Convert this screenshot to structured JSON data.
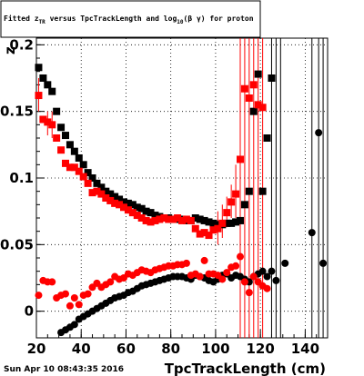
{
  "chart_data": {
    "type": "scatter",
    "title": "Fitted z_{TR} versus TpcTrackLength and log_{10}(βγ) for proton",
    "title_parts": {
      "pre": "Fitted z",
      "sub1": "TR",
      "mid": " versus TpcTrackLength and log",
      "sub2": "10",
      "post": "(β γ) for proton"
    },
    "xlabel": "TpcTrackLength (cm)",
    "ylabel": "z",
    "xlim": [
      20,
      150
    ],
    "ylim": [
      -0.02,
      0.205
    ],
    "x_ticks": [
      20,
      40,
      60,
      80,
      100,
      120,
      140
    ],
    "y_ticks": [
      0,
      0.05,
      0.1,
      0.15,
      0.2
    ],
    "y_tick_labels": [
      "0",
      "0.05",
      "0.1",
      "0.15",
      "0.2"
    ],
    "grid": true,
    "colors": {
      "mean_series": "#000000",
      "red_series": "#ff0000"
    },
    "series": [
      {
        "color": "#000000",
        "marker": "square",
        "points": [
          [
            21,
            0.183
          ],
          [
            23,
            0.175
          ],
          [
            25,
            0.17
          ],
          [
            27,
            0.165
          ],
          [
            29,
            0.15
          ],
          [
            31,
            0.138
          ],
          [
            33,
            0.132
          ],
          [
            35,
            0.125
          ],
          [
            37,
            0.12
          ],
          [
            39,
            0.115
          ],
          [
            41,
            0.11
          ],
          [
            43,
            0.104
          ],
          [
            45,
            0.1
          ],
          [
            47,
            0.096
          ],
          [
            49,
            0.093
          ],
          [
            51,
            0.09
          ],
          [
            53,
            0.088
          ],
          [
            55,
            0.086
          ],
          [
            57,
            0.084
          ],
          [
            59,
            0.082
          ],
          [
            61,
            0.081
          ],
          [
            63,
            0.08
          ],
          [
            65,
            0.078
          ],
          [
            67,
            0.077
          ],
          [
            69,
            0.075
          ],
          [
            71,
            0.074
          ],
          [
            73,
            0.072
          ],
          [
            75,
            0.071
          ],
          [
            77,
            0.07
          ],
          [
            79,
            0.07
          ],
          [
            81,
            0.069
          ],
          [
            83,
            0.069
          ],
          [
            85,
            0.069
          ],
          [
            87,
            0.068
          ],
          [
            89,
            0.068
          ],
          [
            91,
            0.07
          ],
          [
            93,
            0.069
          ],
          [
            95,
            0.068
          ],
          [
            97,
            0.067
          ],
          [
            99,
            0.066
          ],
          [
            101,
            0.065
          ],
          [
            103,
            0.065
          ],
          [
            105,
            0.066
          ],
          [
            107,
            0.066
          ],
          [
            109,
            0.067
          ],
          [
            111,
            0.068
          ],
          [
            113,
            0.08
          ],
          [
            115,
            0.09
          ],
          [
            117,
            0.15
          ],
          [
            119,
            0.178
          ],
          [
            121,
            0.09
          ],
          [
            123,
            0.13
          ],
          [
            125,
            0.175
          ]
        ]
      },
      {
        "color": "#ff0000",
        "marker": "square",
        "points": [
          [
            21,
            0.162
          ],
          [
            23,
            0.144
          ],
          [
            25,
            0.142
          ],
          [
            27,
            0.14
          ],
          [
            29,
            0.13
          ],
          [
            31,
            0.121
          ],
          [
            33,
            0.111
          ],
          [
            35,
            0.108
          ],
          [
            37,
            0.108
          ],
          [
            39,
            0.105
          ],
          [
            41,
            0.101
          ],
          [
            43,
            0.096
          ],
          [
            45,
            0.089
          ],
          [
            47,
            0.09
          ],
          [
            49,
            0.088
          ],
          [
            51,
            0.085
          ],
          [
            53,
            0.083
          ],
          [
            55,
            0.081
          ],
          [
            57,
            0.08
          ],
          [
            59,
            0.078
          ],
          [
            61,
            0.076
          ],
          [
            63,
            0.074
          ],
          [
            65,
            0.072
          ],
          [
            67,
            0.07
          ],
          [
            69,
            0.068
          ],
          [
            71,
            0.067
          ],
          [
            73,
            0.068
          ],
          [
            75,
            0.069
          ],
          [
            77,
            0.07
          ],
          [
            79,
            0.069
          ],
          [
            81,
            0.069
          ],
          [
            83,
            0.07
          ],
          [
            85,
            0.068
          ],
          [
            87,
            0.069
          ],
          [
            89,
            0.068
          ],
          [
            91,
            0.062
          ],
          [
            93,
            0.058
          ],
          [
            95,
            0.059
          ],
          [
            97,
            0.057
          ],
          [
            99,
            0.061
          ],
          [
            101,
            0.062
          ],
          [
            103,
            0.066
          ],
          [
            105,
            0.074
          ],
          [
            107,
            0.082
          ],
          [
            109,
            0.088
          ],
          [
            111,
            0.114
          ],
          [
            113,
            0.167
          ],
          [
            115,
            0.16
          ],
          [
            117,
            0.17
          ],
          [
            119,
            0.155
          ],
          [
            121,
            0.153
          ]
        ]
      },
      {
        "color": "#000000",
        "marker": "circle",
        "points": [
          [
            31,
            -0.016
          ],
          [
            33,
            -0.014
          ],
          [
            35,
            -0.012
          ],
          [
            37,
            -0.01
          ],
          [
            39,
            -0.006
          ],
          [
            41,
            -0.004
          ],
          [
            43,
            -0.002
          ],
          [
            45,
            0.0
          ],
          [
            47,
            0.002
          ],
          [
            49,
            0.004
          ],
          [
            51,
            0.006
          ],
          [
            53,
            0.008
          ],
          [
            55,
            0.01
          ],
          [
            57,
            0.011
          ],
          [
            59,
            0.012
          ],
          [
            61,
            0.014
          ],
          [
            63,
            0.015
          ],
          [
            65,
            0.017
          ],
          [
            67,
            0.019
          ],
          [
            69,
            0.02
          ],
          [
            71,
            0.021
          ],
          [
            73,
            0.022
          ],
          [
            75,
            0.023
          ],
          [
            77,
            0.024
          ],
          [
            79,
            0.025
          ],
          [
            81,
            0.026
          ],
          [
            83,
            0.026
          ],
          [
            85,
            0.026
          ],
          [
            87,
            0.025
          ],
          [
            89,
            0.024
          ],
          [
            91,
            0.027
          ],
          [
            93,
            0.026
          ],
          [
            95,
            0.025
          ],
          [
            97,
            0.023
          ],
          [
            99,
            0.022
          ],
          [
            101,
            0.024
          ],
          [
            103,
            0.027
          ],
          [
            105,
            0.028
          ],
          [
            107,
            0.025
          ],
          [
            109,
            0.027
          ],
          [
            111,
            0.026
          ],
          [
            113,
            0.024
          ],
          [
            115,
            0.022
          ],
          [
            117,
            0.026
          ],
          [
            119,
            0.028
          ],
          [
            121,
            0.03
          ],
          [
            123,
            0.026
          ],
          [
            125,
            0.03
          ],
          [
            127,
            0.023
          ],
          [
            131,
            0.036
          ],
          [
            143,
            0.059
          ],
          [
            146,
            0.134
          ],
          [
            148,
            0.036
          ]
        ]
      },
      {
        "color": "#ff0000",
        "marker": "circle",
        "points": [
          [
            21,
            0.012
          ],
          [
            23,
            0.023
          ],
          [
            25,
            0.022
          ],
          [
            27,
            0.022
          ],
          [
            29,
            0.01
          ],
          [
            31,
            0.012
          ],
          [
            33,
            0.013
          ],
          [
            35,
            0.004
          ],
          [
            37,
            0.01
          ],
          [
            39,
            0.005
          ],
          [
            41,
            0.012
          ],
          [
            43,
            0.013
          ],
          [
            45,
            0.018
          ],
          [
            47,
            0.021
          ],
          [
            49,
            0.018
          ],
          [
            51,
            0.02
          ],
          [
            53,
            0.022
          ],
          [
            55,
            0.026
          ],
          [
            57,
            0.024
          ],
          [
            59,
            0.025
          ],
          [
            61,
            0.028
          ],
          [
            63,
            0.027
          ],
          [
            65,
            0.029
          ],
          [
            67,
            0.031
          ],
          [
            69,
            0.03
          ],
          [
            71,
            0.029
          ],
          [
            73,
            0.031
          ],
          [
            75,
            0.032
          ],
          [
            77,
            0.033
          ],
          [
            79,
            0.034
          ],
          [
            81,
            0.034
          ],
          [
            83,
            0.035
          ],
          [
            85,
            0.035
          ],
          [
            87,
            0.036
          ],
          [
            89,
            0.027
          ],
          [
            91,
            0.028
          ],
          [
            93,
            0.026
          ],
          [
            95,
            0.038
          ],
          [
            97,
            0.028
          ],
          [
            99,
            0.028
          ],
          [
            101,
            0.027
          ],
          [
            103,
            0.024
          ],
          [
            105,
            0.029
          ],
          [
            107,
            0.033
          ],
          [
            109,
            0.034
          ],
          [
            111,
            0.041
          ],
          [
            113,
            0.022
          ],
          [
            115,
            0.014
          ],
          [
            117,
            0.026
          ],
          [
            119,
            0.022
          ],
          [
            121,
            0.019
          ],
          [
            123,
            0.017
          ]
        ]
      }
    ],
    "error_bars": [
      {
        "x": 111,
        "lo": -0.02,
        "hi": 0.205,
        "color": "#ff0000"
      },
      {
        "x": 113,
        "lo": -0.02,
        "hi": 0.205,
        "color": "#ff0000"
      },
      {
        "x": 115,
        "lo": -0.02,
        "hi": 0.205,
        "color": "#ff0000"
      },
      {
        "x": 117,
        "lo": -0.02,
        "hi": 0.205,
        "color": "#ff0000"
      },
      {
        "x": 119,
        "lo": -0.02,
        "hi": 0.205,
        "color": "#ff0000"
      },
      {
        "x": 121,
        "lo": -0.02,
        "hi": 0.205,
        "color": "#ff0000"
      },
      {
        "x": 125,
        "lo": -0.02,
        "hi": 0.205,
        "color": "#000000"
      },
      {
        "x": 127,
        "lo": -0.02,
        "hi": 0.205,
        "color": "#000000"
      },
      {
        "x": 129,
        "lo": -0.02,
        "hi": 0.205,
        "color": "#000000"
      },
      {
        "x": 143,
        "lo": -0.02,
        "hi": 0.205,
        "color": "#000000"
      },
      {
        "x": 146,
        "lo": -0.02,
        "hi": 0.205,
        "color": "#000000"
      },
      {
        "x": 148,
        "lo": -0.02,
        "hi": 0.205,
        "color": "#000000"
      },
      {
        "x": 21,
        "lo": 0.15,
        "hi": 0.175,
        "color": "#ff0000"
      },
      {
        "x": 25,
        "lo": 0.132,
        "hi": 0.15,
        "color": "#ff0000"
      },
      {
        "x": 27,
        "lo": 0.13,
        "hi": 0.15,
        "color": "#ff0000"
      },
      {
        "x": 101,
        "lo": 0.05,
        "hi": 0.075,
        "color": "#ff0000"
      },
      {
        "x": 103,
        "lo": 0.055,
        "hi": 0.08,
        "color": "#ff0000"
      },
      {
        "x": 105,
        "lo": 0.063,
        "hi": 0.086,
        "color": "#ff0000"
      },
      {
        "x": 107,
        "lo": 0.07,
        "hi": 0.095,
        "color": "#ff0000"
      },
      {
        "x": 109,
        "lo": 0.07,
        "hi": 0.11,
        "color": "#ff0000"
      }
    ]
  },
  "footer": {
    "date": "Sun Apr 10 08:43:35 2016"
  }
}
